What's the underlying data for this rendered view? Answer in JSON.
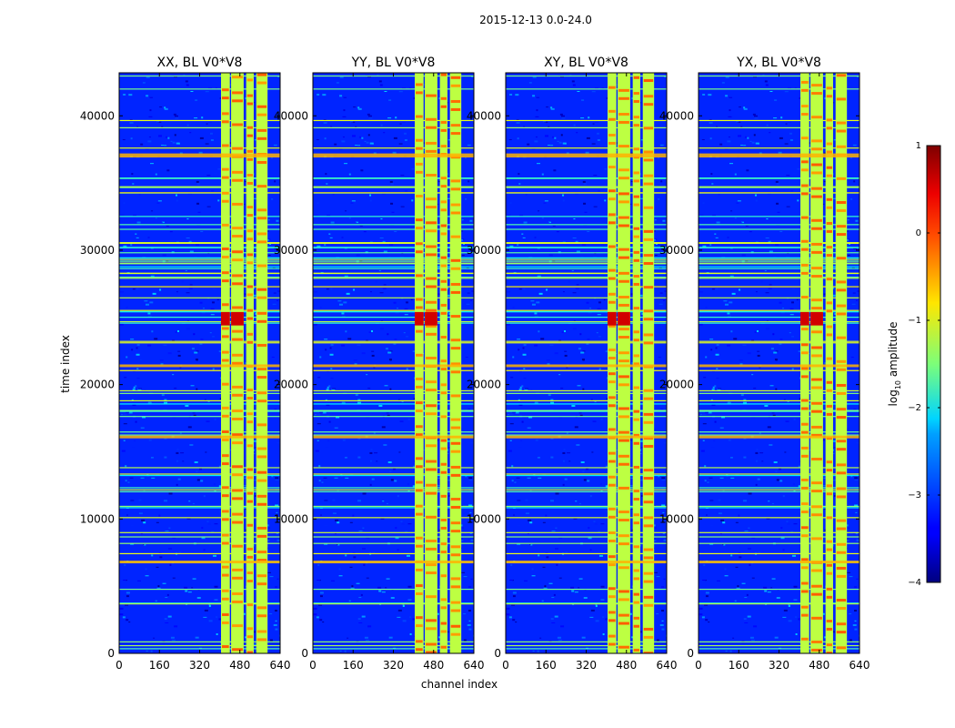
{
  "figure": {
    "suptitle": "2015-12-13 0.0-24.0",
    "xlabel": "channel index",
    "ylabel": "time index"
  },
  "chart_data": {
    "type": "heatmap",
    "title": "2015-12-13 0.0-24.0",
    "xlabel": "channel index",
    "ylabel": "time index",
    "xlim": [
      0,
      640
    ],
    "ylim": [
      0,
      43200
    ],
    "xticks": [
      0,
      160,
      320,
      480,
      640
    ],
    "yticks": [
      0,
      10000,
      20000,
      30000,
      40000
    ],
    "panels": [
      {
        "title": "XX, BL V0*V8",
        "polarization": "XX"
      },
      {
        "title": "YY, BL V0*V8",
        "polarization": "YY"
      },
      {
        "title": "XY, BL V0*V8",
        "polarization": "XY"
      },
      {
        "title": "YX, BL V0*V8",
        "polarization": "YX"
      }
    ],
    "colorbar": {
      "label_prefix": "log",
      "label_sub": "10",
      "label_suffix": " amplitude",
      "range": [
        -4,
        1
      ],
      "ticks": [
        -4,
        -3,
        -2,
        -1,
        0,
        1
      ],
      "tick_labels": [
        "−4",
        "−3",
        "−2",
        "−1",
        "0",
        "1"
      ],
      "colormap": "jet"
    },
    "bright_channel_bands": [
      [
        405,
        440
      ],
      [
        445,
        495
      ],
      [
        505,
        535
      ],
      [
        545,
        590
      ]
    ],
    "high_amplitude_time_ranges": [
      [
        24400,
        24800
      ],
      [
        36900,
        37200
      ],
      [
        6700,
        6900
      ],
      [
        16000,
        16200
      ],
      [
        21300,
        21500
      ]
    ],
    "background_level": -3.2,
    "band_level": -1.2
  },
  "colors": {
    "jet_low": "#00007f",
    "background": "#1f3cff",
    "band": "#c8f23a",
    "hot": "#ff4a00",
    "tick": "#000000"
  }
}
